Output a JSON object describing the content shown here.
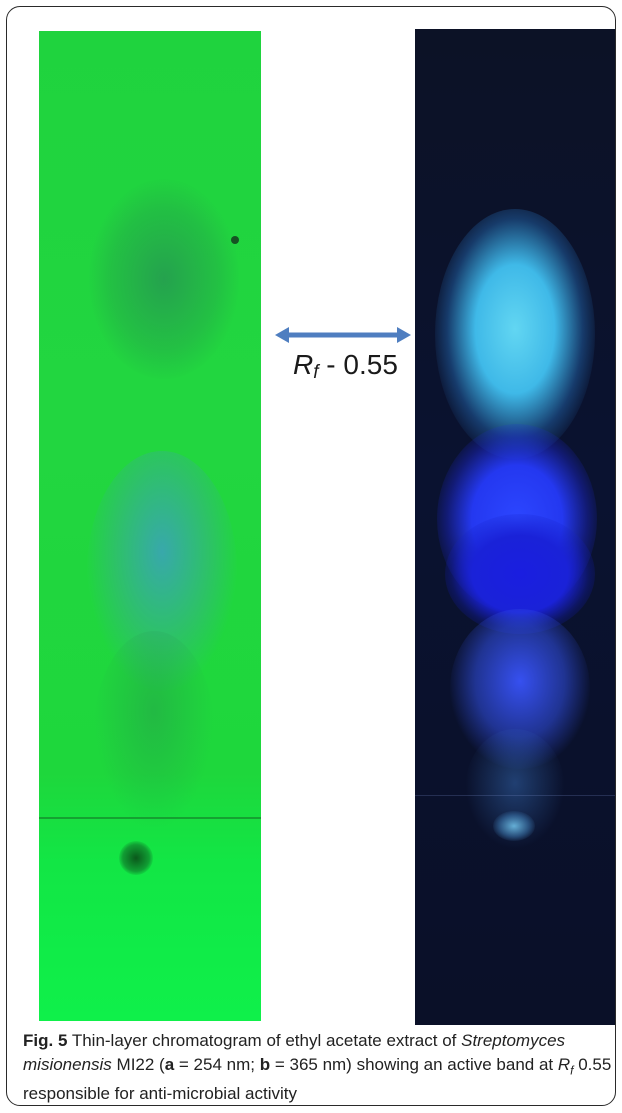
{
  "figure": {
    "panels": [
      {
        "id": "a",
        "wavelength": "254 nm"
      },
      {
        "id": "b",
        "wavelength": "365 nm"
      }
    ],
    "rf_marker": {
      "symbol": "R",
      "subscript": "f",
      "text": " - 0.55"
    },
    "caption": {
      "label": "Fig. 5",
      "text_1": " Thin-layer chromatogram of ethyl acetate extract of ",
      "species": "Streptomyces misionensis",
      "text_2": " MI22 (",
      "a_key": "a",
      "a_value": " = 254 nm; ",
      "b_key": "b",
      "b_value": " = 365 nm) showing an active band at ",
      "rf_symbol": "R",
      "rf_sub": "f",
      "text_3": " 0.55 responsible for anti-microbial activity"
    },
    "colors": {
      "plate_a": "#1fd33e",
      "plate_b": "#0c1226",
      "arrow": "#4f7ec0"
    }
  }
}
